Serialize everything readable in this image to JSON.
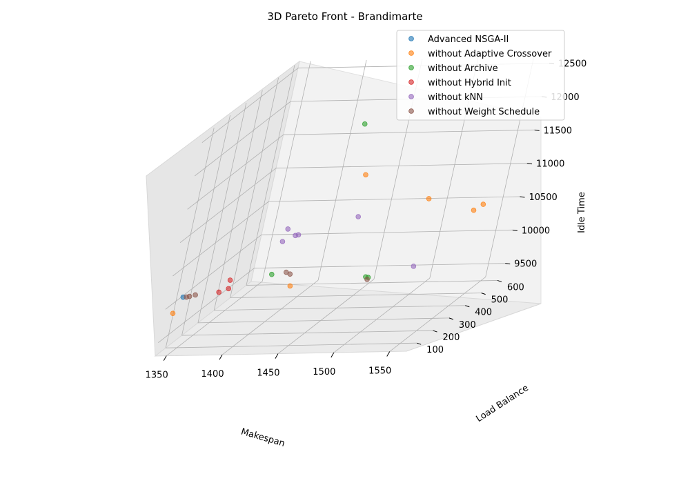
{
  "chart_data": {
    "type": "scatter",
    "projection": "3d",
    "title": "3D Pareto Front - Brandimarte",
    "xlabel": "Makespan",
    "ylabel": "Load Balance",
    "zlabel": "Idle Time",
    "xlim": [
      1340,
      1565
    ],
    "ylim": [
      35,
      630
    ],
    "zlim": [
      9300,
      12600
    ],
    "x_ticks": [
      1350,
      1400,
      1450,
      1500,
      1550
    ],
    "y_ticks": [
      100,
      200,
      300,
      400,
      500,
      600
    ],
    "z_ticks": [
      9500,
      10000,
      10500,
      11000,
      11500,
      12000,
      12500
    ],
    "grid": true,
    "legend_position": "top-right",
    "series": [
      {
        "name": "Advanced NSGA-II",
        "color": "#1f77b4",
        "points": [
          [
            1345,
            105,
            10050
          ]
        ]
      },
      {
        "name": "without Adaptive Crossover",
        "color": "#ff7f0e",
        "points": [
          [
            1345,
            55,
            9900
          ],
          [
            1430,
            180,
            10050
          ],
          [
            1440,
            480,
            11150
          ],
          [
            1510,
            410,
            10900
          ],
          [
            1555,
            390,
            10750
          ],
          [
            1560,
            410,
            10800
          ]
        ]
      },
      {
        "name": "without Archive",
        "color": "#2ca02c",
        "points": [
          [
            1395,
            315,
            9980
          ],
          [
            1425,
            515,
            11850
          ],
          [
            1495,
            210,
            10100
          ],
          [
            1492,
            215,
            10100
          ]
        ]
      },
      {
        "name": "without Hybrid Init",
        "color": "#d62728",
        "points": [
          [
            1372,
            140,
            10050
          ],
          [
            1378,
            155,
            10200
          ],
          [
            1380,
            140,
            10100
          ]
        ]
      },
      {
        "name": "without kNN",
        "color": "#9467bd",
        "points": [
          [
            1400,
            320,
            10650
          ],
          [
            1408,
            320,
            10550
          ],
          [
            1410,
            325,
            10550
          ],
          [
            1400,
            300,
            10500
          ],
          [
            1450,
            410,
            10650
          ],
          [
            1530,
            240,
            10200
          ]
        ]
      },
      {
        "name": "without Weight Schedule",
        "color": "#8c564b",
        "points": [
          [
            1348,
            105,
            10050
          ],
          [
            1350,
            110,
            10050
          ],
          [
            1355,
            110,
            10070
          ],
          [
            1407,
            320,
            10000
          ],
          [
            1412,
            310,
            9990
          ],
          [
            1495,
            205,
            10080
          ]
        ]
      }
    ]
  }
}
